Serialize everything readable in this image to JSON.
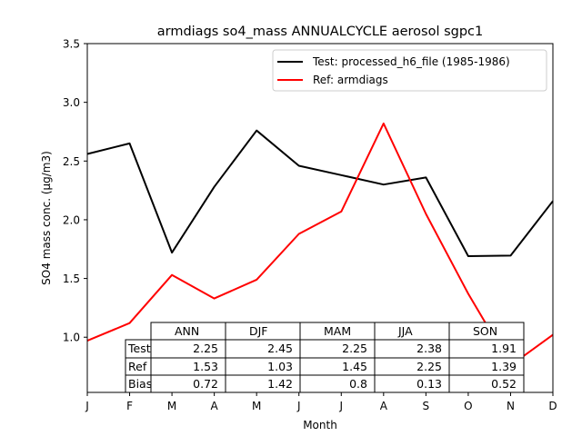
{
  "chart_data": {
    "type": "line",
    "title": "armdiags so4_mass ANNUALCYCLE aerosol sgpc1",
    "xlabel": "Month",
    "ylabel": "SO4 mass conc. (µg/m3)",
    "categories": [
      "J",
      "F",
      "M",
      "A",
      "M",
      "J",
      "J",
      "A",
      "S",
      "O",
      "N",
      "D"
    ],
    "ylim": [
      0.53,
      3.5
    ],
    "yticks": [
      1.0,
      1.5,
      2.0,
      2.5,
      3.0,
      3.5
    ],
    "ytick_labels": [
      "1.0",
      "1.5",
      "2.0",
      "2.5",
      "3.0",
      "3.5"
    ],
    "grid": false,
    "legend_position": "top-right",
    "series": [
      {
        "name": "Test: processed_h6_file (1985-1986)",
        "color": "#000000",
        "values": [
          2.56,
          2.65,
          1.72,
          2.28,
          2.76,
          2.46,
          2.38,
          2.3,
          2.36,
          1.69,
          1.695,
          2.16
        ]
      },
      {
        "name": "Ref: armdiags",
        "color": "#ff0000",
        "values": [
          0.97,
          1.12,
          1.53,
          1.33,
          1.49,
          1.88,
          2.07,
          2.82,
          2.05,
          1.37,
          0.76,
          1.02
        ]
      }
    ],
    "table": {
      "col_headers": [
        "ANN",
        "DJF",
        "MAM",
        "JJA",
        "SON"
      ],
      "rows": [
        {
          "label": "Test",
          "values": [
            "2.25",
            "2.45",
            "2.25",
            "2.38",
            "1.91"
          ]
        },
        {
          "label": "Ref",
          "values": [
            "1.53",
            "1.03",
            "1.45",
            "2.25",
            "1.39"
          ]
        },
        {
          "label": "Bias",
          "values": [
            "0.72",
            "1.42",
            "0.8",
            "0.13",
            "0.52"
          ]
        }
      ]
    }
  }
}
